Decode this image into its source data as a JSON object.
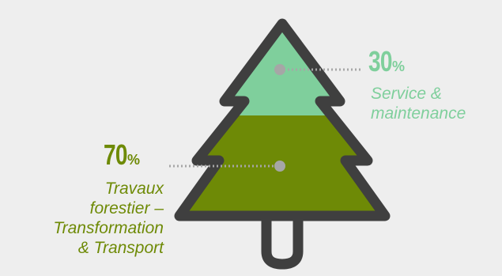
{
  "chart_data": {
    "type": "pie",
    "title": "",
    "slices": [
      {
        "label": "Service & maintenance",
        "lines": [
          "Service &",
          "maintenance"
        ],
        "value": 30,
        "display": "30",
        "unit": "%",
        "color": "#7fcf9c"
      },
      {
        "label": "Travaux forestier – Transformation & Transport",
        "lines": [
          "Travaux",
          "forestier –",
          "Transformation",
          "& Transport"
        ],
        "value": 70,
        "display": "70",
        "unit": "%",
        "color": "#6e8a06"
      }
    ],
    "outline_color": "#3f3f3f",
    "marker_color": "#a6a6a6",
    "background": "#eeeeee"
  }
}
